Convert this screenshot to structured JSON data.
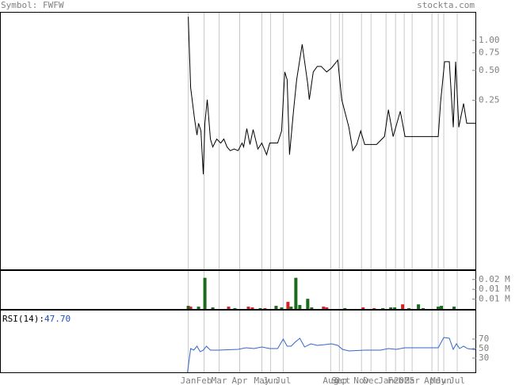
{
  "header": {
    "symbol": "Symbol: FWFW",
    "site": "stockta.com"
  },
  "chart_data": [
    {
      "type": "line",
      "log_scale": true,
      "color": "#000000",
      "xlim": [
        0,
        120
      ],
      "ylim": [
        0.005,
        1.9
      ],
      "yticks": [
        {
          "value": 1,
          "label": "1.00"
        },
        {
          "value": 0.75,
          "label": "0.75"
        },
        {
          "value": 0.5,
          "label": "0.50"
        },
        {
          "value": 0.25,
          "label": "0.25"
        }
      ],
      "xticks": [
        {
          "value": 47.4,
          "label": "Jan"
        },
        {
          "value": 51.4,
          "label": "Feb"
        },
        {
          "value": 55.2,
          "label": "Mar"
        },
        {
          "value": 60.4,
          "label": "Apr"
        },
        {
          "value": 66,
          "label": "May"
        },
        {
          "value": 68.2,
          "label": "Jun"
        },
        {
          "value": 71.4,
          "label": "Jul"
        },
        {
          "value": 83.4,
          "label": "Aug"
        },
        {
          "value": 85.6,
          "label": "Sep"
        },
        {
          "value": 86.4,
          "label": "Oct"
        },
        {
          "value": 91.2,
          "label": "Nov"
        },
        {
          "value": 93.6,
          "label": "Dec"
        },
        {
          "value": 97.4,
          "label": "Jan"
        },
        {
          "value": 99.8,
          "label": "Feb"
        },
        {
          "value": 102,
          "label": "2025"
        },
        {
          "value": 104,
          "label": "Mar"
        },
        {
          "value": 109,
          "label": "Apr"
        },
        {
          "value": 110.6,
          "label": "May"
        },
        {
          "value": 112,
          "label": "Jun"
        },
        {
          "value": 115.4,
          "label": "Jul"
        }
      ],
      "x": [
        47.4,
        47.6,
        48,
        49,
        49.6,
        50,
        50.6,
        51.2,
        51.6,
        52.2,
        53,
        53.6,
        54.6,
        55.6,
        56.4,
        57.2,
        58,
        59,
        60,
        61,
        61.4,
        62.2,
        63,
        63.8,
        65,
        66,
        67.2,
        68,
        70,
        71,
        71.8,
        72.4,
        73,
        74,
        74.8,
        76.2,
        77.6,
        78,
        79,
        80,
        81,
        82.4,
        83.6,
        85.2,
        86.2,
        88,
        89,
        90,
        91,
        92,
        95,
        97,
        98,
        99.2,
        101,
        102.2,
        110.6,
        111.2,
        112.2,
        113.4,
        114.4,
        115,
        115.8,
        117,
        117.8,
        120
      ],
      "values": [
        1.73,
        1.0,
        0.335,
        0.161,
        0.112,
        0.147,
        0.123,
        0.045,
        0.147,
        0.254,
        0.102,
        0.085,
        0.102,
        0.093,
        0.102,
        0.085,
        0.078,
        0.081,
        0.078,
        0.093,
        0.085,
        0.13,
        0.09,
        0.127,
        0.081,
        0.093,
        0.071,
        0.093,
        0.093,
        0.123,
        0.482,
        0.402,
        0.071,
        0.194,
        0.402,
        0.913,
        0.367,
        0.254,
        0.482,
        0.548,
        0.548,
        0.482,
        0.528,
        0.634,
        0.254,
        0.134,
        0.078,
        0.09,
        0.123,
        0.09,
        0.09,
        0.108,
        0.201,
        0.108,
        0.194,
        0.108,
        0.108,
        0.241,
        0.611,
        0.611,
        0.134,
        0.611,
        0.134,
        0.232,
        0.147,
        0.147
      ]
    },
    {
      "type": "bar",
      "xlim": [
        0,
        120
      ],
      "ylim": [
        0,
        23200
      ],
      "yticks": [
        {
          "value": 18000,
          "label": "0.02 M"
        },
        {
          "value": 12000,
          "label": "0.01 M"
        },
        {
          "value": 6000,
          "label": "0.01 M"
        }
      ],
      "x": [
        47.4,
        48,
        50,
        51.6,
        53.6,
        57.6,
        59.2,
        62.6,
        63.6,
        65.6,
        66.8,
        69.6,
        71,
        72.6,
        73.4,
        74.6,
        75.6,
        77.6,
        78.6,
        81.6,
        82.4,
        87,
        91.6,
        94.4,
        96.6,
        98.6,
        99.6,
        101.6,
        103.2,
        105.6,
        106.8,
        110.6,
        111.4,
        114.6
      ],
      "values": [
        1900,
        1400,
        1400,
        19000,
        950,
        1400,
        500,
        1400,
        950,
        500,
        500,
        1900,
        950,
        4300,
        1400,
        19000,
        2400,
        6200,
        950,
        1400,
        950,
        500,
        950,
        500,
        500,
        950,
        950,
        2800,
        500,
        2800,
        500,
        1400,
        1900,
        1400
      ],
      "colors": [
        "#1a6b1a",
        "#d42020",
        "#1a6b1a",
        "#1a6b1a",
        "#1a6b1a",
        "#d42020",
        "#1a6b1a",
        "#d42020",
        "#d42020",
        "#1a6b1a",
        "#d42020",
        "#1a6b1a",
        "#1a6b1a",
        "#d42020",
        "#1a6b1a",
        "#1a6b1a",
        "#1a6b1a",
        "#1a6b1a",
        "#1a6b1a",
        "#d42020",
        "#d42020",
        "#1a6b1a",
        "#d42020",
        "#d42020",
        "#1a6b1a",
        "#1a6b1a",
        "#1a6b1a",
        "#d42020",
        "#1a6b1a",
        "#1a6b1a",
        "#1a6b1a",
        "#1a6b1a",
        "#1a6b1a",
        "#1a6b1a"
      ]
    },
    {
      "type": "line",
      "color": "#3366cc",
      "label": "RSI(14):",
      "current": "47.70",
      "xlim": [
        0,
        120
      ],
      "ylim": [
        0,
        130
      ],
      "yticks": [
        70,
        50,
        30
      ],
      "x": [
        47.2,
        48,
        48.8,
        49.6,
        50.4,
        51.2,
        52,
        53,
        55,
        60,
        62,
        64,
        66,
        68,
        70,
        71.4,
        72.4,
        73.4,
        74.4,
        75.6,
        76.8,
        78.4,
        80,
        82,
        83.6,
        85.2,
        86.4,
        88,
        92,
        96,
        98,
        100,
        102.2,
        110.6,
        112,
        113.4,
        114.4,
        115.2,
        116,
        117,
        118,
        120
      ],
      "values": [
        0,
        50,
        46.7,
        55,
        43.3,
        46.7,
        55,
        46.7,
        46.7,
        48.3,
        51.7,
        50,
        53.3,
        50,
        50,
        70,
        55,
        55,
        63.3,
        71.7,
        53.3,
        60,
        56.7,
        58.3,
        60,
        56.7,
        48.3,
        45,
        46.7,
        46.7,
        50,
        48.3,
        51.7,
        51.7,
        73.3,
        71.7,
        48.3,
        60,
        50,
        55,
        50,
        47.7
      ]
    }
  ]
}
